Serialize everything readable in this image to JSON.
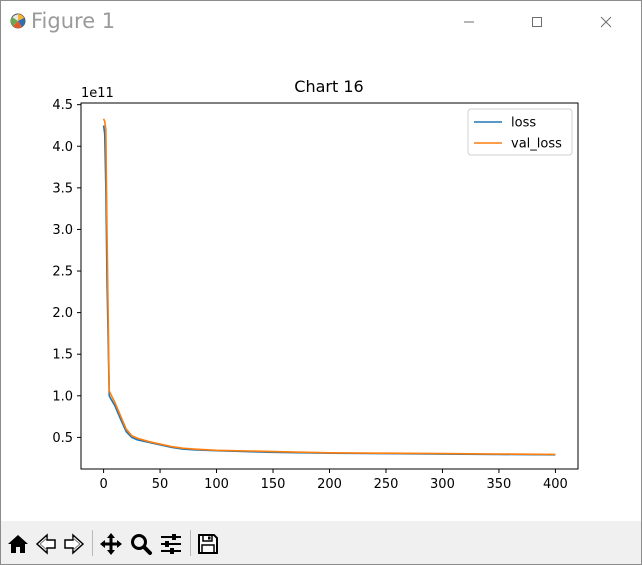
{
  "window": {
    "title": "Figure 1",
    "icons": {
      "app": "matplotlib-icon",
      "minimize": "minimize-icon",
      "maximize": "maximize-icon",
      "close": "close-icon"
    }
  },
  "toolbar": {
    "buttons": [
      {
        "name": "home-icon",
        "tooltip": "Reset original view"
      },
      {
        "name": "back-arrow-icon",
        "tooltip": "Back to previous view"
      },
      {
        "name": "forward-arrow-icon",
        "tooltip": "Forward to next view"
      },
      {
        "name": "pan-icon",
        "tooltip": "Pan axes"
      },
      {
        "name": "zoom-icon",
        "tooltip": "Zoom to rectangle"
      },
      {
        "name": "configure-subplots-icon",
        "tooltip": "Configure subplots"
      },
      {
        "name": "save-icon",
        "tooltip": "Save the figure"
      }
    ]
  },
  "chart_data": {
    "type": "line",
    "title": "Chart 16",
    "xlabel": "",
    "ylabel": "",
    "y_offset_label": "1e11",
    "xlim": [
      -20,
      420
    ],
    "ylim": [
      0.12,
      4.52
    ],
    "xticks": [
      0,
      50,
      100,
      150,
      200,
      250,
      300,
      350,
      400
    ],
    "yticks": [
      0.5,
      1.0,
      1.5,
      2.0,
      2.5,
      3.0,
      3.5,
      4.0,
      4.5
    ],
    "ytick_labels": [
      "0.5",
      "1.0",
      "1.5",
      "2.0",
      "2.5",
      "3.0",
      "3.5",
      "4.0",
      "4.5"
    ],
    "grid": false,
    "legend_position": "top-right",
    "series": [
      {
        "name": "loss",
        "color": "#1f77b4",
        "x": [
          0,
          1,
          2,
          3,
          5,
          7,
          10,
          15,
          20,
          25,
          30,
          40,
          50,
          60,
          70,
          80,
          100,
          150,
          200,
          250,
          300,
          350,
          400
        ],
        "y": [
          4.25,
          4.15,
          3.5,
          2.4,
          1.0,
          0.95,
          0.88,
          0.72,
          0.57,
          0.5,
          0.47,
          0.44,
          0.41,
          0.38,
          0.36,
          0.35,
          0.34,
          0.32,
          0.31,
          0.305,
          0.3,
          0.295,
          0.29
        ]
      },
      {
        "name": "val_loss",
        "color": "#ff7f0e",
        "x": [
          0,
          1,
          2,
          3,
          5,
          7,
          10,
          15,
          20,
          25,
          30,
          40,
          50,
          60,
          70,
          80,
          100,
          150,
          200,
          250,
          300,
          350,
          400
        ],
        "y": [
          4.33,
          4.3,
          4.2,
          3.0,
          1.06,
          1.0,
          0.92,
          0.76,
          0.6,
          0.52,
          0.49,
          0.45,
          0.42,
          0.39,
          0.37,
          0.36,
          0.345,
          0.33,
          0.315,
          0.31,
          0.305,
          0.3,
          0.295
        ]
      }
    ]
  }
}
